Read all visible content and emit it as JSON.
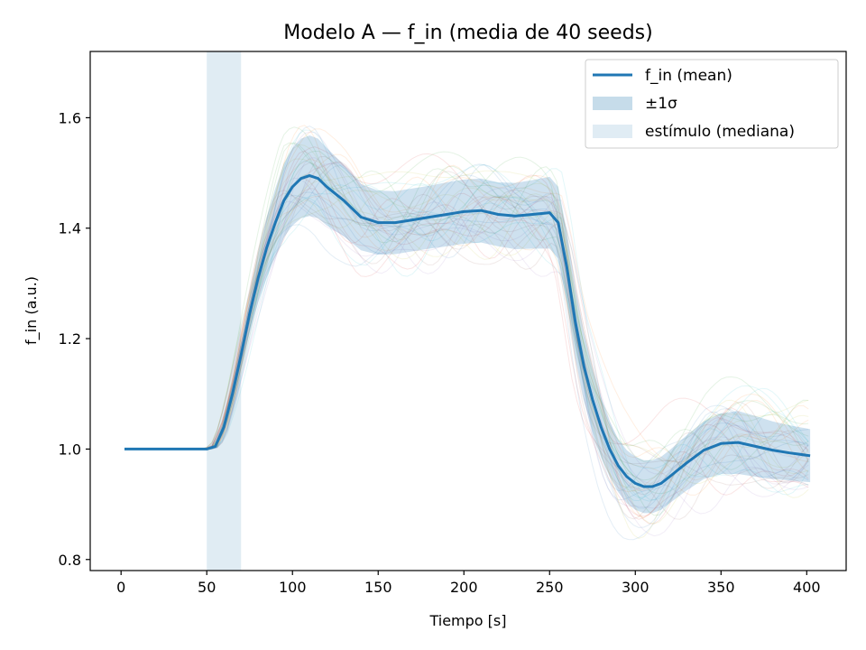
{
  "chart_data": {
    "type": "line",
    "title": "Modelo A — f_in (media de 40 seeds)",
    "xlabel": "Tiempo [s]",
    "ylabel": "f_in (a.u.)",
    "xlim": [
      -18,
      423
    ],
    "ylim": [
      0.78,
      1.72
    ],
    "xticks": [
      0,
      50,
      100,
      150,
      200,
      250,
      300,
      350,
      400
    ],
    "yticks": [
      0.8,
      1.0,
      1.2,
      1.4,
      1.6
    ],
    "ytick_labels": [
      "0.8",
      "1.0",
      "1.2",
      "1.4",
      "1.6"
    ],
    "grid": false,
    "legend_position": "top-right",
    "stimulus_band": {
      "label": "estímulo (mediana)",
      "x_start": 50,
      "x_end": 70,
      "color": "#c6dcea"
    },
    "series": [
      {
        "name": "f_in (mean)",
        "color": "#1f77b4",
        "x": [
          2,
          10,
          20,
          30,
          40,
          50,
          55,
          60,
          65,
          70,
          75,
          80,
          85,
          90,
          95,
          100,
          105,
          110,
          115,
          120,
          130,
          140,
          150,
          160,
          170,
          180,
          190,
          200,
          210,
          220,
          230,
          240,
          250,
          255,
          260,
          265,
          270,
          275,
          280,
          285,
          290,
          295,
          300,
          305,
          310,
          315,
          320,
          330,
          340,
          350,
          360,
          370,
          380,
          390,
          402
        ],
        "y": [
          1.0,
          1.0,
          1.0,
          1.0,
          1.0,
          1.0,
          1.005,
          1.04,
          1.1,
          1.17,
          1.245,
          1.31,
          1.365,
          1.41,
          1.45,
          1.475,
          1.49,
          1.495,
          1.49,
          1.475,
          1.45,
          1.42,
          1.41,
          1.41,
          1.415,
          1.42,
          1.425,
          1.43,
          1.432,
          1.425,
          1.422,
          1.425,
          1.428,
          1.41,
          1.33,
          1.23,
          1.15,
          1.09,
          1.04,
          1.0,
          0.97,
          0.95,
          0.938,
          0.932,
          0.932,
          0.938,
          0.95,
          0.975,
          0.998,
          1.01,
          1.012,
          1.005,
          0.998,
          0.993,
          0.988
        ]
      }
    ],
    "band": {
      "name": "±1σ",
      "color": "#1f77b4",
      "x": [
        2,
        50,
        55,
        60,
        65,
        70,
        75,
        80,
        85,
        90,
        95,
        100,
        105,
        110,
        115,
        120,
        130,
        140,
        150,
        160,
        170,
        180,
        190,
        200,
        210,
        220,
        230,
        240,
        250,
        255,
        260,
        265,
        270,
        275,
        280,
        285,
        290,
        295,
        300,
        305,
        310,
        315,
        320,
        330,
        340,
        350,
        360,
        370,
        380,
        390,
        402
      ],
      "sigma": [
        0,
        0,
        0.003,
        0.01,
        0.018,
        0.025,
        0.035,
        0.045,
        0.055,
        0.062,
        0.067,
        0.07,
        0.072,
        0.073,
        0.072,
        0.07,
        0.065,
        0.06,
        0.058,
        0.057,
        0.057,
        0.057,
        0.058,
        0.058,
        0.058,
        0.058,
        0.06,
        0.062,
        0.065,
        0.065,
        0.065,
        0.065,
        0.063,
        0.06,
        0.055,
        0.05,
        0.048,
        0.048,
        0.048,
        0.048,
        0.048,
        0.048,
        0.048,
        0.05,
        0.052,
        0.055,
        0.057,
        0.055,
        0.052,
        0.05,
        0.048
      ]
    },
    "individual_runs": {
      "count": 40,
      "opacity": 0.12
    }
  },
  "legend": {
    "items": [
      {
        "label": "f_in (mean)",
        "kind": "line",
        "color": "#1f77b4"
      },
      {
        "label": "±1σ",
        "kind": "patch",
        "color": "#c6dcea"
      },
      {
        "label": "estímulo (mediana)",
        "kind": "patch",
        "color": "#e0ecf4"
      }
    ]
  }
}
